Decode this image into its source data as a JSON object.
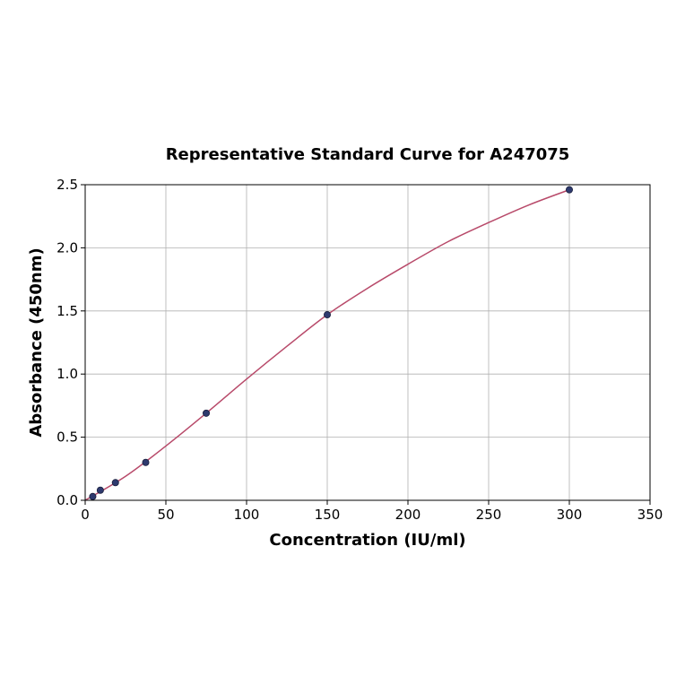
{
  "chart_data": {
    "type": "scatter",
    "title": "Representative Standard Curve for A247075",
    "xlabel": "Concentration (IU/ml)",
    "ylabel": "Absorbance (450nm)",
    "xlim": [
      0,
      350
    ],
    "ylim": [
      0,
      2.5
    ],
    "xticks": [
      "0",
      "50",
      "100",
      "150",
      "200",
      "250",
      "300",
      "350"
    ],
    "yticks": [
      "0.0",
      "0.5",
      "1.0",
      "1.5",
      "2.0",
      "2.5"
    ],
    "xtick_values": [
      0,
      50,
      100,
      150,
      200,
      250,
      300,
      350
    ],
    "ytick_values": [
      0,
      0.5,
      1.0,
      1.5,
      2.0,
      2.5
    ],
    "grid": true,
    "points": {
      "x": [
        4.69,
        9.38,
        18.75,
        37.5,
        75,
        150,
        300
      ],
      "y": [
        0.03,
        0.08,
        0.14,
        0.3,
        0.69,
        1.47,
        2.46
      ]
    },
    "fit_curve": {
      "x": [
        0,
        25,
        50,
        75,
        100,
        125,
        150,
        175,
        200,
        225,
        250,
        275,
        300
      ],
      "y": [
        0.0,
        0.19,
        0.43,
        0.69,
        0.96,
        1.22,
        1.47,
        1.68,
        1.87,
        2.05,
        2.2,
        2.34,
        2.46
      ]
    },
    "colors": {
      "points": "#2e3a6e",
      "curve": "#b84a6a",
      "grid": "#b0b0b0"
    }
  }
}
